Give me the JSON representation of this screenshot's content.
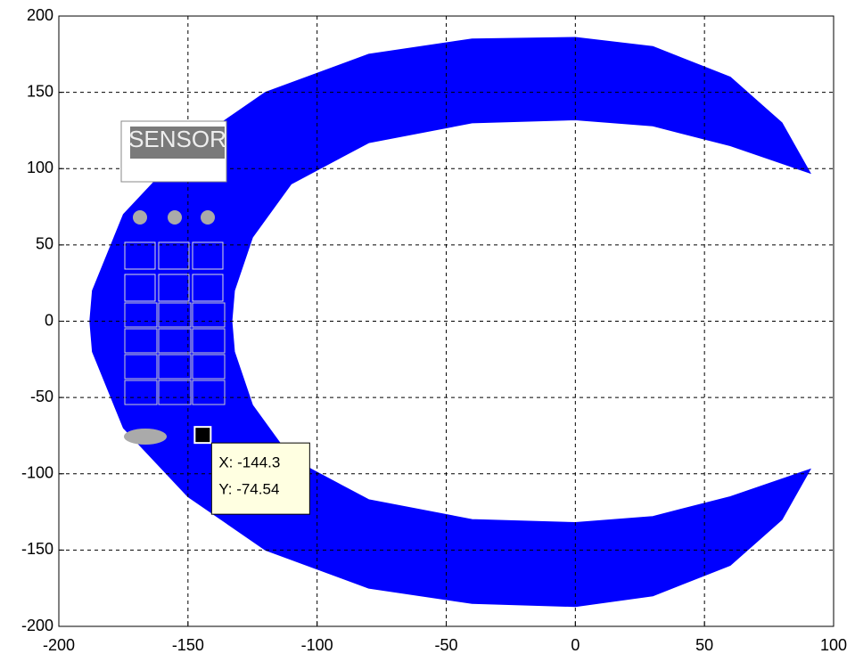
{
  "chart_data": {
    "type": "area",
    "x": [
      91,
      80,
      60,
      30,
      0,
      -40,
      -80,
      -120,
      -150,
      -175,
      -187,
      -188,
      -187,
      -175,
      -150,
      -120,
      -80,
      -40,
      0,
      30,
      60,
      80,
      91,
      60,
      30,
      0,
      -40,
      -80,
      -110,
      -125,
      -132,
      -133,
      -132,
      -125,
      -110,
      -80,
      -40,
      0,
      30,
      60,
      91
    ],
    "y": [
      97,
      130,
      160,
      180,
      186,
      185,
      175,
      150,
      115,
      70,
      20,
      0,
      -20,
      -70,
      -115,
      -150,
      -175,
      -185,
      -187,
      -180,
      -160,
      -130,
      -97,
      -115,
      -128,
      -132,
      -130,
      -117,
      -90,
      -55,
      -20,
      0,
      20,
      55,
      90,
      117,
      130,
      132,
      128,
      115,
      97
    ],
    "color": "#0000ff",
    "xlim": [
      -200,
      100
    ],
    "ylim": [
      -200,
      200
    ],
    "xticks": [
      -200,
      -150,
      -100,
      -50,
      0,
      50,
      100
    ],
    "yticks": [
      -200,
      -150,
      -100,
      -50,
      0,
      50,
      100,
      150,
      200
    ],
    "grid": true,
    "overlay_label": "SENSOR",
    "datatip": {
      "x": -144.3,
      "y": -74.54,
      "x_label": "X: -144.3",
      "y_label": "Y: -74.54"
    }
  }
}
